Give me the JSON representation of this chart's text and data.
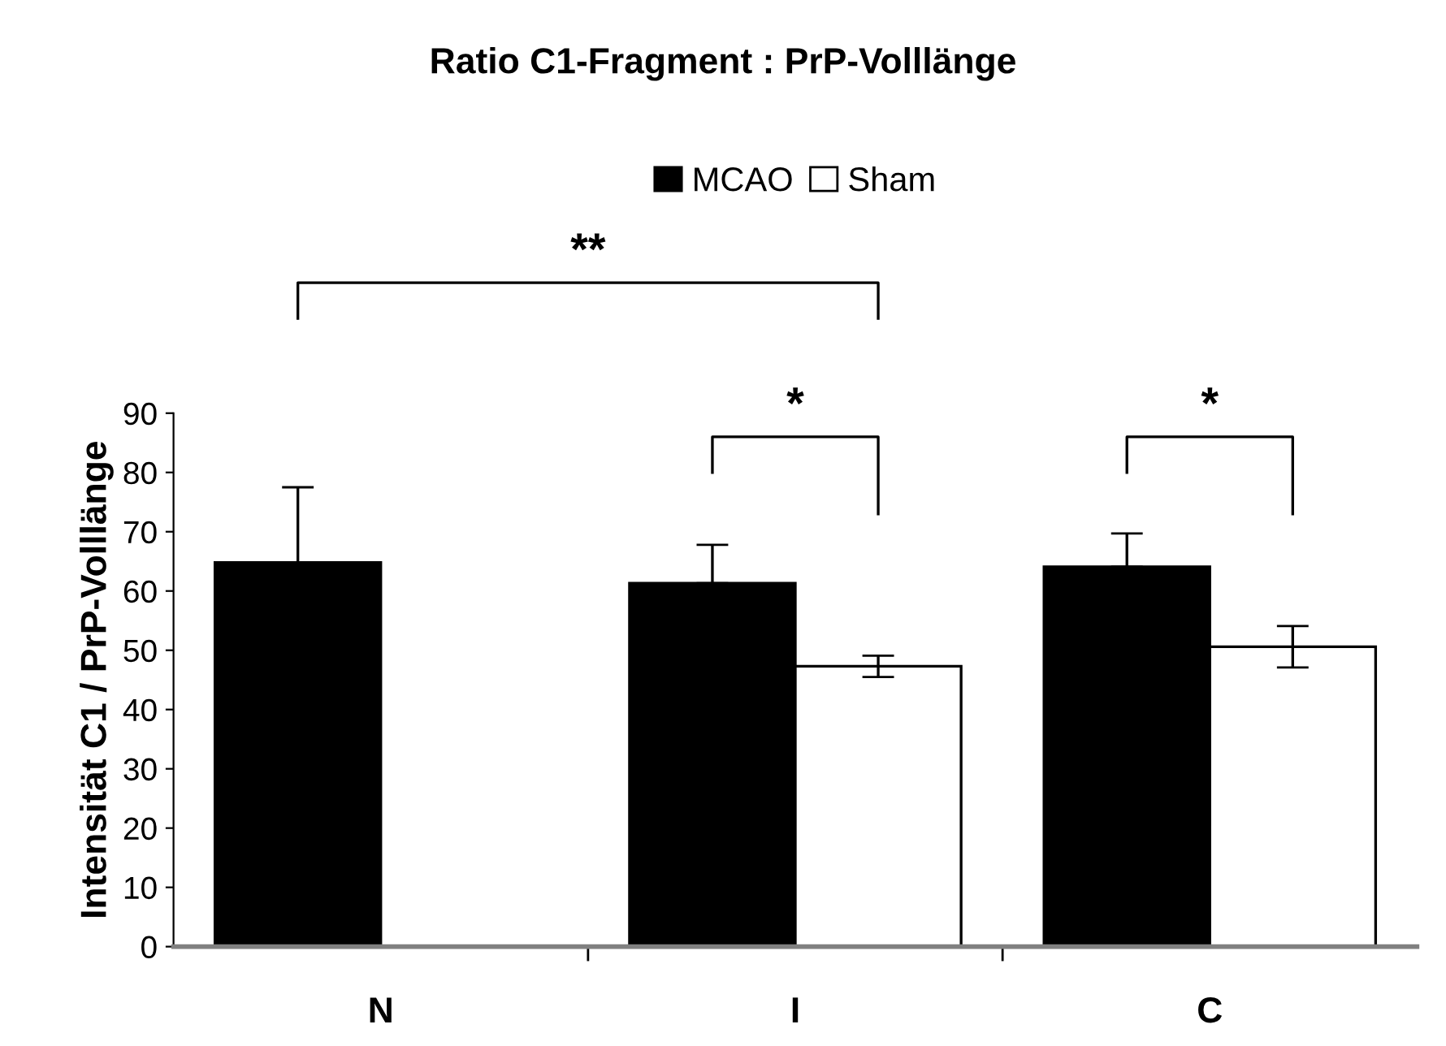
{
  "chart_data": {
    "type": "bar",
    "title": "Ratio C1-Fragment : PrP-Volllänge",
    "ylabel": "Intensität C1 / PrP-Volllänge",
    "categories": [
      "N",
      "I",
      "C"
    ],
    "series": [
      {
        "name": "MCAO",
        "color": "#000000",
        "values": [
          64.8,
          61.3,
          64.1
        ],
        "errors": [
          12.7,
          6.5,
          5.6
        ]
      },
      {
        "name": "Sham",
        "color": "#ffffff",
        "values": [
          0,
          47.3,
          50.6
        ],
        "errors": [
          null,
          1.8,
          3.5
        ]
      }
    ],
    "ylim": [
      0,
      90
    ],
    "yticks": [
      0,
      10,
      20,
      30,
      40,
      50,
      60,
      70,
      80,
      90
    ],
    "grid": false,
    "legend": "top",
    "annotations": [
      "**",
      "*",
      "*"
    ]
  }
}
